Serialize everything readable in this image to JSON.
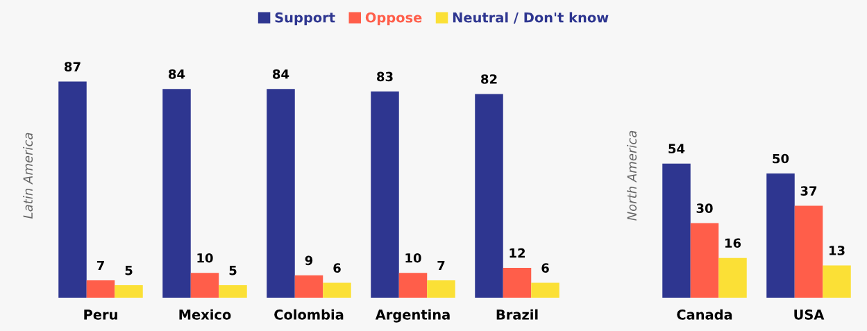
{
  "chart_data": [
    {
      "type": "bar",
      "ylabel": "Latin America",
      "categories": [
        "Peru",
        "Mexico",
        "Colombia",
        "Argentina",
        "Brazil"
      ],
      "data_labels": true,
      "legend": "top",
      "grid": false,
      "series": [
        {
          "name": "Support",
          "color": "#2e3690",
          "values": [
            87,
            84,
            84,
            83,
            82
          ]
        },
        {
          "name": "Oppose",
          "color": "#ff5e4a",
          "values": [
            7,
            10,
            9,
            10,
            12
          ]
        },
        {
          "name": "Neutral / Don't know",
          "color": "#fbe036",
          "values": [
            5,
            5,
            6,
            7,
            6
          ]
        }
      ]
    },
    {
      "type": "bar",
      "ylabel": "North America",
      "categories": [
        "Canada",
        "USA"
      ],
      "data_labels": true,
      "grid": false,
      "series": [
        {
          "color": "#2e3690",
          "values": [
            54,
            50
          ]
        },
        {
          "color": "#ff5e4a",
          "values": [
            30,
            37
          ]
        },
        {
          "color": "#fbe036",
          "values": [
            16,
            13
          ]
        }
      ]
    }
  ]
}
